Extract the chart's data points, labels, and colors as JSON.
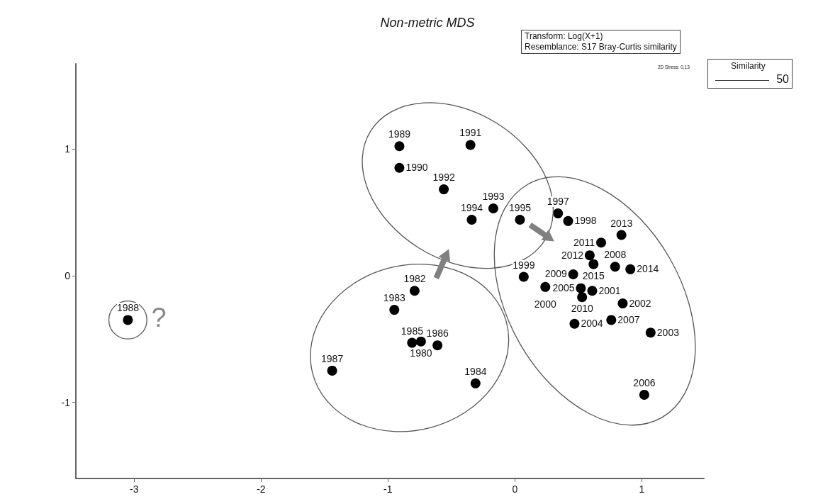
{
  "chart_data": {
    "type": "scatter",
    "title": "Non-metric MDS",
    "x": [
      -3.05,
      -1.44,
      -0.95,
      -0.79,
      -0.81,
      -0.74,
      -0.61,
      -0.31,
      -0.91,
      -0.91,
      -0.35,
      -0.56,
      -0.17,
      -0.34,
      0.04,
      0.34,
      0.42,
      0.59,
      0.62,
      0.68,
      0.84,
      0.79,
      0.91,
      0.46,
      0.52,
      0.61,
      0.53,
      0.07,
      0.24,
      0.85,
      0.76,
      0.47,
      1.07,
      1.02
    ],
    "series": [
      {
        "color": "#000000",
        "values": [
          -0.35,
          -0.75,
          -0.27,
          -0.12,
          -0.53,
          -0.52,
          -0.55,
          -0.85,
          1.02,
          0.85,
          1.03,
          0.68,
          0.53,
          0.44,
          0.44,
          0.49,
          0.43,
          0.16,
          0.09,
          0.26,
          0.32,
          0.07,
          0.05,
          0.01,
          -0.1,
          -0.12,
          -0.17,
          -0.01,
          -0.09,
          -0.22,
          -0.35,
          -0.38,
          -0.45,
          -0.94
        ]
      }
    ],
    "annotations": [
      {
        "text": "1988",
        "x": -3.05,
        "y": -0.35
      },
      {
        "text": "1987",
        "x": -1.44,
        "y": -0.75
      },
      {
        "text": "1983",
        "x": -0.95,
        "y": -0.27
      },
      {
        "text": "1982",
        "x": -0.79,
        "y": -0.12
      },
      {
        "text": "1985",
        "x": -0.81,
        "y": -0.53
      },
      {
        "text": "1980",
        "x": -0.74,
        "y": -0.52
      },
      {
        "text": "1986",
        "x": -0.61,
        "y": -0.55
      },
      {
        "text": "1984",
        "x": -0.31,
        "y": -0.85
      },
      {
        "text": "1989",
        "x": -0.91,
        "y": 1.02
      },
      {
        "text": "1990",
        "x": -0.91,
        "y": 0.85
      },
      {
        "text": "1991",
        "x": -0.35,
        "y": 1.03
      },
      {
        "text": "1992",
        "x": -0.56,
        "y": 0.68
      },
      {
        "text": "1993",
        "x": -0.17,
        "y": 0.53
      },
      {
        "text": "1994",
        "x": -0.34,
        "y": 0.44
      },
      {
        "text": "1995",
        "x": 0.04,
        "y": 0.44
      },
      {
        "text": "1997",
        "x": 0.34,
        "y": 0.49
      },
      {
        "text": "1998",
        "x": 0.42,
        "y": 0.43
      },
      {
        "text": "2012",
        "x": 0.59,
        "y": 0.16
      },
      {
        "text": "2015",
        "x": 0.62,
        "y": 0.09
      },
      {
        "text": "2011",
        "x": 0.68,
        "y": 0.26
      },
      {
        "text": "2013",
        "x": 0.84,
        "y": 0.32
      },
      {
        "text": "2008",
        "x": 0.79,
        "y": 0.07
      },
      {
        "text": "2014",
        "x": 0.91,
        "y": 0.05
      },
      {
        "text": "2009",
        "x": 0.46,
        "y": 0.01
      },
      {
        "text": "2005",
        "x": 0.52,
        "y": -0.1
      },
      {
        "text": "2001",
        "x": 0.61,
        "y": -0.12
      },
      {
        "text": "2010",
        "x": 0.53,
        "y": -0.17
      },
      {
        "text": "1999",
        "x": 0.07,
        "y": -0.01
      },
      {
        "text": "2000",
        "x": 0.24,
        "y": -0.09
      },
      {
        "text": "2002",
        "x": 0.85,
        "y": -0.22
      },
      {
        "text": "2007",
        "x": 0.76,
        "y": -0.35
      },
      {
        "text": "2004",
        "x": 0.47,
        "y": -0.38
      },
      {
        "text": "2003",
        "x": 1.07,
        "y": -0.45
      },
      {
        "text": "2006",
        "x": 1.02,
        "y": -0.94
      },
      "Transform: Log(X+1)",
      "Resemblance: S17 Bray-Curtis similarity",
      "2D Stress: 0,13",
      "Similarity",
      "50",
      "?"
    ],
    "xlim": [
      -3.46,
      1.49
    ],
    "ylim": [
      -1.6,
      1.67
    ],
    "xticks": [
      -3,
      -2,
      -1,
      0,
      1
    ],
    "yticks": [
      -1,
      0,
      1
    ],
    "grid": false,
    "marker": "circle"
  }
}
